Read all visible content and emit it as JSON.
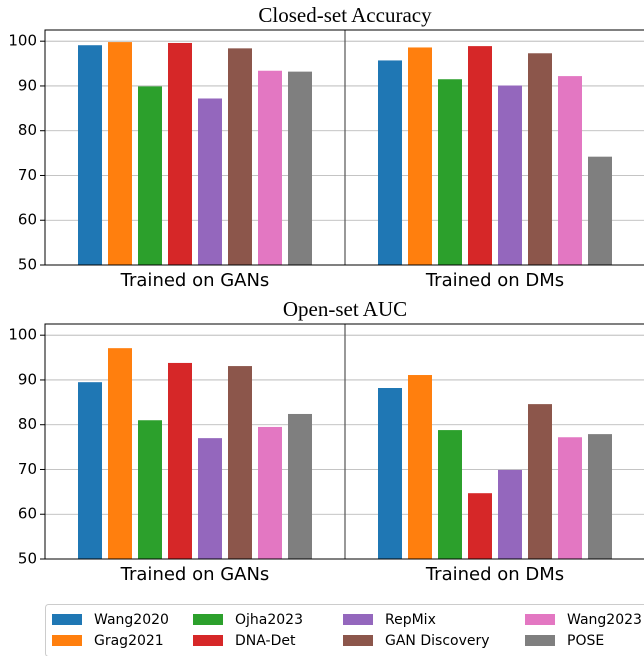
{
  "chart_data": [
    {
      "type": "bar",
      "title": "Closed-set Accuracy",
      "categories": [
        "Trained on GANs",
        "Trained on DMs"
      ],
      "series": [
        {
          "name": "Wang2020",
          "color": "#1f77b4",
          "values": [
            99.1,
            95.7
          ]
        },
        {
          "name": "Grag2021",
          "color": "#ff7f0e",
          "values": [
            99.8,
            98.6
          ]
        },
        {
          "name": "Ojha2023",
          "color": "#2ca02c",
          "values": [
            89.9,
            91.5
          ]
        },
        {
          "name": "DNA-Det",
          "color": "#d62728",
          "values": [
            99.6,
            98.9
          ]
        },
        {
          "name": "RepMix",
          "color": "#9467bd",
          "values": [
            87.2,
            90.1
          ]
        },
        {
          "name": "GAN Discovery",
          "color": "#8c564b",
          "values": [
            98.4,
            97.3
          ]
        },
        {
          "name": "Wang2023",
          "color": "#e377c2",
          "values": [
            93.4,
            92.2
          ]
        },
        {
          "name": "POSE",
          "color": "#7f7f7f",
          "values": [
            93.2,
            74.2
          ]
        }
      ],
      "ylim": [
        50,
        102.5
      ],
      "yticks": [
        50,
        60,
        70,
        80,
        90,
        100
      ],
      "grid": true
    },
    {
      "type": "bar",
      "title": "Open-set AUC",
      "categories": [
        "Trained on GANs",
        "Trained on DMs"
      ],
      "series": [
        {
          "name": "Wang2020",
          "color": "#1f77b4",
          "values": [
            89.5,
            88.2
          ]
        },
        {
          "name": "Grag2021",
          "color": "#ff7f0e",
          "values": [
            97.1,
            91.1
          ]
        },
        {
          "name": "Ojha2023",
          "color": "#2ca02c",
          "values": [
            81.0,
            78.8
          ]
        },
        {
          "name": "DNA-Det",
          "color": "#d62728",
          "values": [
            93.8,
            64.7
          ]
        },
        {
          "name": "RepMix",
          "color": "#9467bd",
          "values": [
            77.0,
            69.9
          ]
        },
        {
          "name": "GAN Discovery",
          "color": "#8c564b",
          "values": [
            93.1,
            84.6
          ]
        },
        {
          "name": "Wang2023",
          "color": "#e377c2",
          "values": [
            79.5,
            77.2
          ]
        },
        {
          "name": "POSE",
          "color": "#7f7f7f",
          "values": [
            82.4,
            77.9
          ]
        }
      ],
      "ylim": [
        50,
        102.5
      ],
      "yticks": [
        50,
        60,
        70,
        80,
        90,
        100
      ],
      "grid": true
    }
  ]
}
